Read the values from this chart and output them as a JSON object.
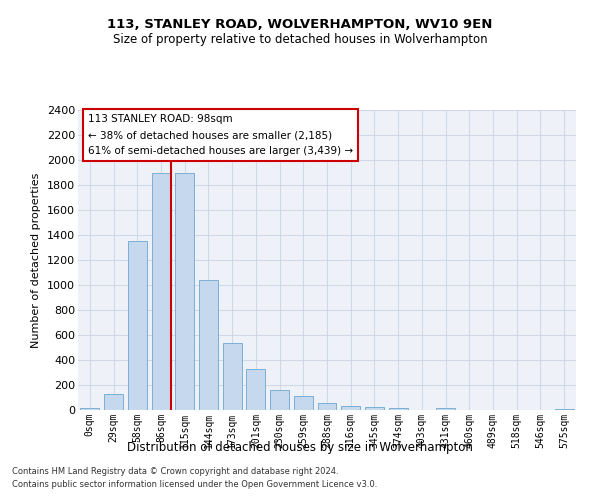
{
  "title": "113, STANLEY ROAD, WOLVERHAMPTON, WV10 9EN",
  "subtitle": "Size of property relative to detached houses in Wolverhampton",
  "xlabel": "Distribution of detached houses by size in Wolverhampton",
  "ylabel": "Number of detached properties",
  "footer1": "Contains HM Land Registry data © Crown copyright and database right 2024.",
  "footer2": "Contains public sector information licensed under the Open Government Licence v3.0.",
  "bar_labels": [
    "0sqm",
    "29sqm",
    "58sqm",
    "86sqm",
    "115sqm",
    "144sqm",
    "173sqm",
    "201sqm",
    "230sqm",
    "259sqm",
    "288sqm",
    "316sqm",
    "345sqm",
    "374sqm",
    "403sqm",
    "431sqm",
    "460sqm",
    "489sqm",
    "518sqm",
    "546sqm",
    "575sqm"
  ],
  "bar_values": [
    15,
    130,
    1350,
    1900,
    1900,
    1040,
    540,
    330,
    160,
    110,
    55,
    30,
    25,
    15,
    2,
    15,
    2,
    2,
    2,
    2,
    12
  ],
  "bar_color": "#c5d8ed",
  "bar_edge_color": "#7aafd4",
  "grid_color": "#d0d8e8",
  "background_color": "#eef2f8",
  "marker_line_color": "#cc0000",
  "annotation_text": "113 STANLEY ROAD: 98sqm\n← 38% of detached houses are smaller (2,185)\n61% of semi-detached houses are larger (3,439) →",
  "annotation_box_color": "#ffffff",
  "annotation_box_edge": "#cc0000",
  "ylim": [
    0,
    2400
  ],
  "yticks": [
    0,
    200,
    400,
    600,
    800,
    1000,
    1200,
    1400,
    1600,
    1800,
    2000,
    2200,
    2400
  ]
}
